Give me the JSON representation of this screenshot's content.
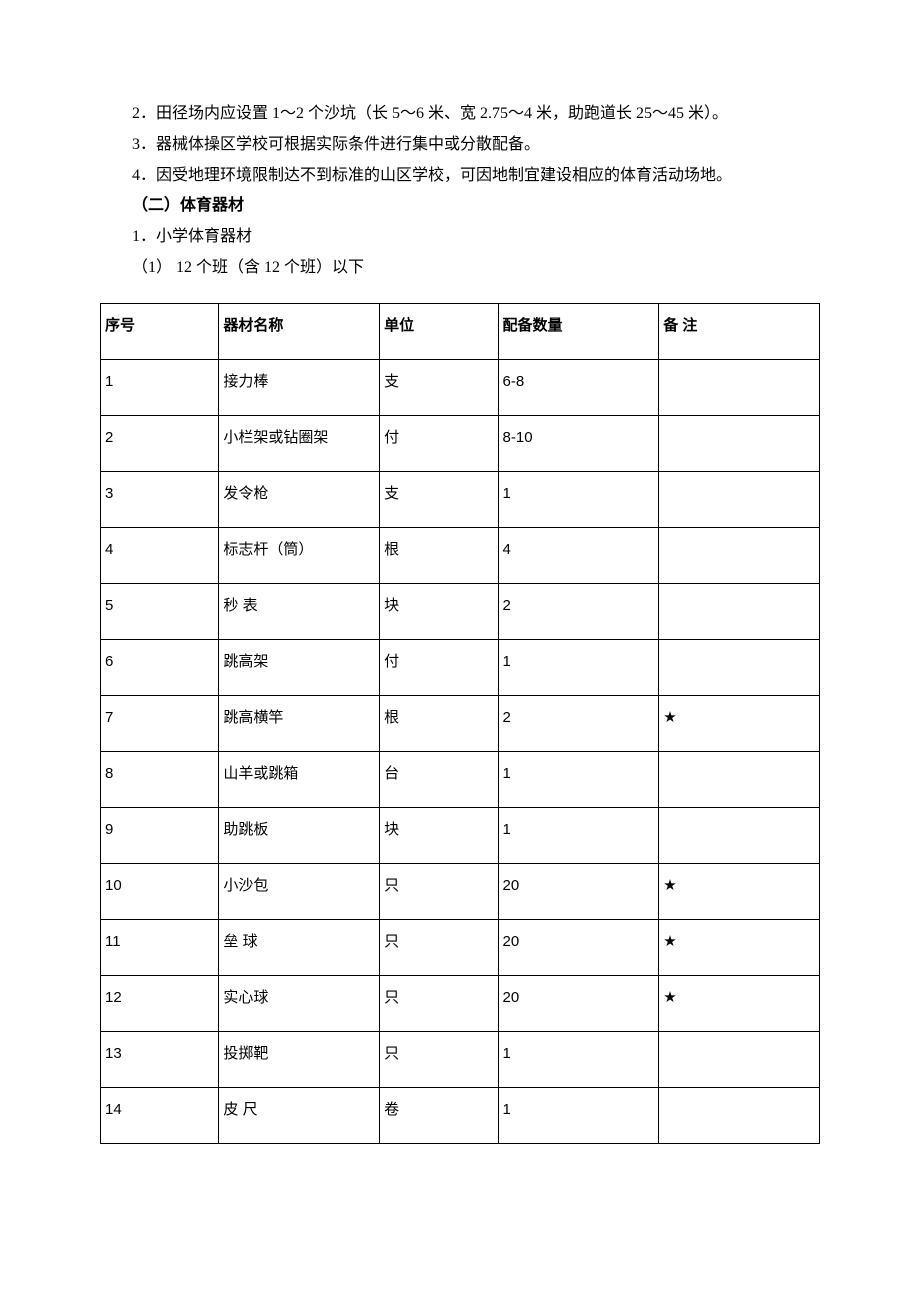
{
  "paragraphs": {
    "p1": "2．田径场内应设置 1～2 个沙坑（长 5～6 米、宽 2.75～4 米，助跑道长 25～45 米）。",
    "p2": "3．器械体操区学校可根据实际条件进行集中或分散配备。",
    "p3": "4．因受地理环境限制达不到标准的山区学校，可因地制宜建设相应的体育活动场地。",
    "p4": "（二）体育器材",
    "p5": "1．小学体育器材",
    "p6": "（1） 12 个班（含 12 个班）以下"
  },
  "table": {
    "headers": {
      "h1": "序号",
      "h2": "器材名称",
      "h3": "单位",
      "h4": "配备数量",
      "h5": "备 注"
    },
    "rows": [
      {
        "c1": "1",
        "c2": "接力棒",
        "c3": "支",
        "c4": "6-8",
        "c5": ""
      },
      {
        "c1": "2",
        "c2": "小栏架或钻圈架",
        "c3": "付",
        "c4": "8-10",
        "c5": ""
      },
      {
        "c1": "3",
        "c2": "发令枪",
        "c3": "支",
        "c4": "1",
        "c5": ""
      },
      {
        "c1": "4",
        "c2": "标志杆（筒）",
        "c3": "根",
        "c4": "4",
        "c5": ""
      },
      {
        "c1": "5",
        "c2": "秒 表",
        "c3": "块",
        "c4": "2",
        "c5": ""
      },
      {
        "c1": "6",
        "c2": "跳高架",
        "c3": "付",
        "c4": "1",
        "c5": ""
      },
      {
        "c1": "7",
        "c2": "跳高横竿",
        "c3": "根",
        "c4": "2",
        "c5": "★"
      },
      {
        "c1": "8",
        "c2": "山羊或跳箱",
        "c3": "台",
        "c4": "1",
        "c5": ""
      },
      {
        "c1": "9",
        "c2": "助跳板",
        "c3": "块",
        "c4": "1",
        "c5": ""
      },
      {
        "c1": "10",
        "c2": "小沙包",
        "c3": "只",
        "c4": "20",
        "c5": "★"
      },
      {
        "c1": "11",
        "c2": "垒 球",
        "c3": "只",
        "c4": "20",
        "c5": "★"
      },
      {
        "c1": "12",
        "c2": "实心球",
        "c3": "只",
        "c4": "20",
        "c5": "★"
      },
      {
        "c1": "13",
        "c2": "投掷靶",
        "c3": "只",
        "c4": "1",
        "c5": ""
      },
      {
        "c1": "14",
        "c2": "皮 尺",
        "c3": "卷",
        "c4": "1",
        "c5": ""
      }
    ]
  }
}
